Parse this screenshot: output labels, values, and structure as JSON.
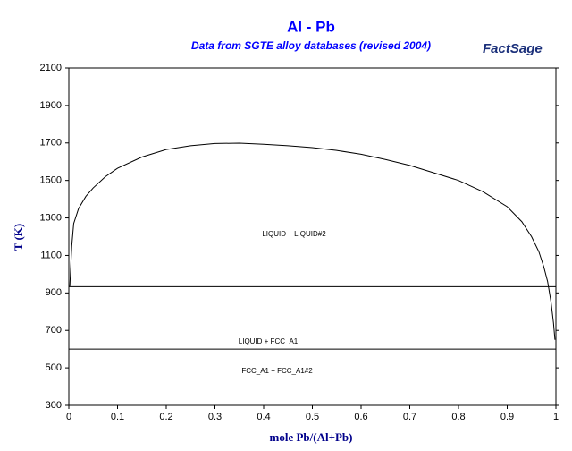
{
  "chart_data": {
    "type": "line",
    "title": "Al - Pb",
    "subtitle": "Data from SGTE alloy databases (revised 2004)",
    "logo": "FactSage",
    "x_label": "mole Pb/(Al+Pb)",
    "y_label": "T (K)",
    "xlim": [
      0,
      1
    ],
    "ylim": [
      300,
      2100
    ],
    "xticks": [
      0,
      0.1,
      0.2,
      0.3,
      0.4,
      0.5,
      0.6,
      0.7,
      0.8,
      0.9,
      1
    ],
    "yticks": [
      300,
      500,
      700,
      900,
      1100,
      1300,
      1500,
      1700,
      1900,
      2100
    ],
    "series": [
      {
        "color": "#000000",
        "x": [
          0.002,
          0.006,
          0.01,
          0.02,
          0.035,
          0.05,
          0.075,
          0.1,
          0.15,
          0.2,
          0.25,
          0.3,
          0.35,
          0.4,
          0.45,
          0.5,
          0.55,
          0.6,
          0.65,
          0.7,
          0.75,
          0.8,
          0.85,
          0.9,
          0.93,
          0.95,
          0.965,
          0.975,
          0.983,
          0.99,
          0.995,
          0.998
        ],
        "values": [
          933,
          1150,
          1270,
          1350,
          1415,
          1460,
          1520,
          1565,
          1625,
          1665,
          1685,
          1697,
          1699,
          1693,
          1685,
          1675,
          1660,
          1640,
          1612,
          1580,
          1540,
          1500,
          1440,
          1360,
          1280,
          1200,
          1120,
          1040,
          960,
          850,
          740,
          650
        ]
      },
      {
        "color": "#000000",
        "x": [
          0,
          1
        ],
        "values": [
          933,
          933
        ]
      },
      {
        "color": "#000000",
        "x": [
          0,
          1
        ],
        "values": [
          600,
          600
        ]
      }
    ],
    "annotations": [
      "LIQUID + LIQUID#2",
      "LIQUID + FCC_A1",
      "FCC_A1 + FCC_A1#2"
    ]
  }
}
